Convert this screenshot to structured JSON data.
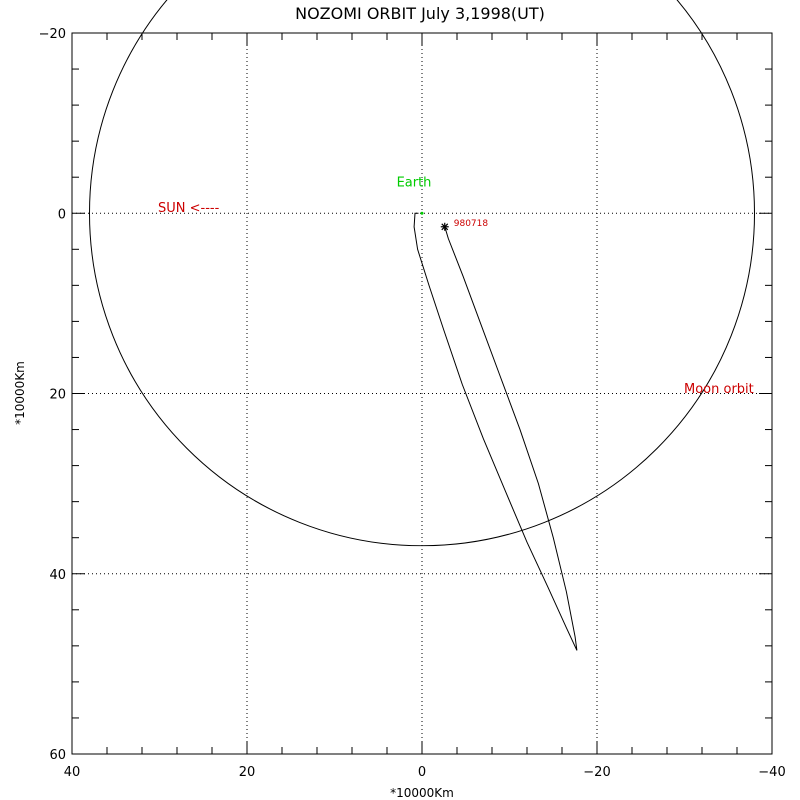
{
  "chart_data": {
    "type": "line",
    "title": "NOZOMI ORBIT July 3,1998(UT)",
    "xlabel": "*10000Km",
    "ylabel": "*10000Km",
    "xlim": [
      40,
      -40
    ],
    "ylim": [
      60,
      -20
    ],
    "x_ticks": [
      40,
      20,
      0,
      -20,
      -40
    ],
    "x_tick_labels": [
      "40",
      "20",
      "0",
      "−20",
      "−40"
    ],
    "y_ticks": [
      -20,
      0,
      20,
      40,
      60
    ],
    "y_tick_labels": [
      "−20",
      "0",
      "20",
      "40",
      "60"
    ],
    "grid": true,
    "moon_orbit": {
      "center_x": 0,
      "center_y": 0,
      "radius": 38.0
    },
    "trajectory": [
      [
        0.4,
        0.0
      ],
      [
        0.8,
        0.0
      ],
      [
        0.9,
        1.5
      ],
      [
        0.5,
        4.0
      ],
      [
        -0.8,
        8.0
      ],
      [
        -2.5,
        13.0
      ],
      [
        -4.6,
        19.0
      ],
      [
        -7.0,
        25.0
      ],
      [
        -9.6,
        31.0
      ],
      [
        -12.0,
        36.5
      ],
      [
        -14.4,
        41.5
      ],
      [
        -16.5,
        46.0
      ],
      [
        -17.7,
        48.5
      ],
      [
        -17.5,
        47.0
      ],
      [
        -16.5,
        42.0
      ],
      [
        -15.0,
        36.0
      ],
      [
        -13.3,
        30.0
      ],
      [
        -11.2,
        24.0
      ],
      [
        -8.9,
        18.0
      ],
      [
        -6.8,
        12.5
      ],
      [
        -4.7,
        7.0
      ],
      [
        -3.0,
        2.8
      ],
      [
        -2.6,
        1.5
      ]
    ],
    "annotations": {
      "earth_label": "Earth",
      "sun_label": "SUN <----",
      "moon_label": "Moon orbit",
      "date_label": "980718"
    },
    "earth_position": [
      0,
      0
    ],
    "marker_position": [
      -2.6,
      1.5
    ],
    "colors": {
      "axes": "#000000",
      "earth": "#00cc00",
      "annotation": "#cc0000",
      "line": "#000000"
    }
  }
}
